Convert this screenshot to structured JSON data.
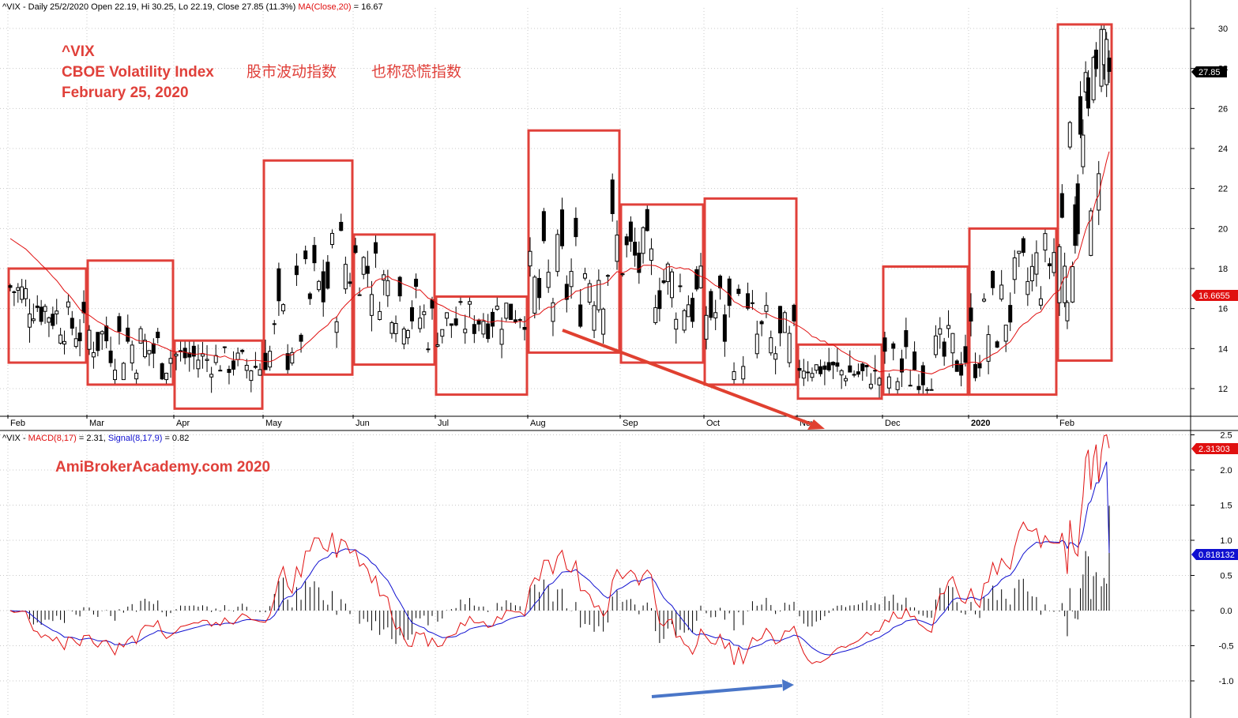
{
  "header": {
    "price_prefix": "^VIX - Daily 25/2/2020 Open 22.19, Hi 30.25, Lo 22.19, Close 27.85 (11.3%)",
    "ma_label": "MA(Close,20)",
    "ma_value": "= 16.67",
    "macd_prefix": "^VIX - ",
    "macd_label": "MACD(8,17)",
    "macd_value": "= 2.31,",
    "signal_label": "Signal(8,17,9)",
    "signal_value": "= 0.82"
  },
  "annotations": {
    "title_line1": "^VIX",
    "title_line2": "CBOE Volatility Index",
    "title_line2_cn": "股市波动指数",
    "title_line2_cn2": "也称恐慌指数",
    "title_line3": "February 25, 2020",
    "watermark": "AmiBrokerAcademy.com  2020"
  },
  "value_tags": {
    "close": "27.85",
    "ma": "16.6655",
    "macd": "2.31303",
    "signal": "0.818132"
  },
  "colors": {
    "box": "#e0403a",
    "ma_line": "#e01010",
    "macd_line": "#e01010",
    "signal_line": "#1010d0",
    "red_arrow": "#e04030",
    "blue_arrow": "#4a76c8",
    "annotation_text": "#e0403a",
    "grid": "#c8c8c8"
  },
  "chart_data": [
    {
      "type": "candlestick",
      "ylim": [
        10.8,
        30.6
      ],
      "yticks": [
        "12",
        "14",
        "16",
        "18",
        "20",
        "22",
        "24",
        "26",
        "28",
        "30"
      ],
      "ytick_values": [
        12,
        14,
        16,
        18,
        20,
        22,
        24,
        26,
        28,
        30
      ],
      "x_labels": [
        "Feb",
        "Mar",
        "Apr",
        "May",
        "Jun",
        "Jul",
        "Aug",
        "Sep",
        "Oct",
        "Nov",
        "Dec",
        "2020",
        "Feb"
      ],
      "x_label_months": [
        0,
        1,
        2,
        3,
        4,
        5,
        6,
        7,
        8,
        9,
        10,
        11,
        12
      ],
      "monthly_boxes": [
        {
          "month": "Feb 2019",
          "low": 13.3,
          "high": 18.0
        },
        {
          "month": "Mar 2019",
          "low": 12.2,
          "high": 18.4
        },
        {
          "month": "Apr 2019",
          "low": 11.0,
          "high": 14.4
        },
        {
          "month": "May 2019",
          "low": 12.7,
          "high": 23.4
        },
        {
          "month": "Jun 2019",
          "low": 13.2,
          "high": 19.7
        },
        {
          "month": "Jul 2019",
          "low": 11.7,
          "high": 16.6
        },
        {
          "month": "Aug 2019",
          "low": 13.8,
          "high": 24.9
        },
        {
          "month": "Sep 2019",
          "low": 13.3,
          "high": 21.2
        },
        {
          "month": "Oct 2019",
          "low": 12.2,
          "high": 21.5
        },
        {
          "month": "Nov 2019",
          "low": 11.5,
          "high": 14.2
        },
        {
          "month": "Dec 2019",
          "low": 11.7,
          "high": 18.1
        },
        {
          "month": "Jan 2020",
          "low": 11.7,
          "high": 20.0
        },
        {
          "month": "Feb 2020",
          "low": 13.4,
          "high": 30.2
        }
      ],
      "monthly_close": [
        14.8,
        13.7,
        13.1,
        18.7,
        15.1,
        16.1,
        18.9,
        16.2,
        13.2,
        12.6,
        13.8,
        18.8,
        27.85
      ],
      "last_close": 27.85,
      "ma20_last": 16.67
    },
    {
      "type": "macd",
      "ylim": [
        -1.5,
        2.6
      ],
      "yticks": [
        "-1.0",
        "-0.5",
        "0.0",
        "0.5",
        "1.0",
        "1.5",
        "2.0",
        "2.5"
      ],
      "ytick_values": [
        -1.0,
        -0.5,
        0.0,
        0.5,
        1.0,
        1.5,
        2.0,
        2.5
      ],
      "macd_last": 2.31,
      "signal_last": 0.82
    }
  ]
}
